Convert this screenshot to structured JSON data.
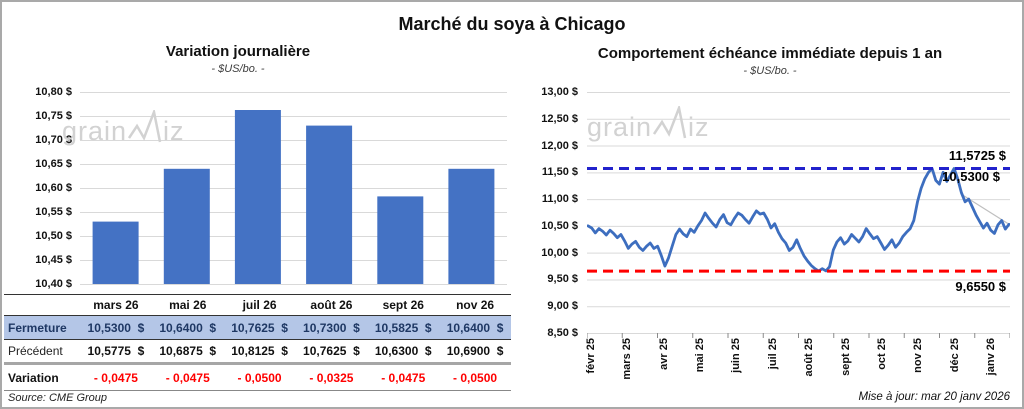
{
  "page": {
    "title": "Marché du soya à Chicago",
    "source": "Source: CME Group",
    "updated": "Mise à jour: mar 20 janv 2026"
  },
  "watermark": {
    "part1": "grain",
    "part2": "iz"
  },
  "chart_data": [
    {
      "type": "bar",
      "title": "Variation journalière",
      "subtitle": "- $US/bo. -",
      "categories": [
        "mars 26",
        "mai 26",
        "juil 26",
        "août 26",
        "sept 26",
        "nov 26"
      ],
      "values": [
        10.53,
        10.64,
        10.7625,
        10.73,
        10.5825,
        10.64
      ],
      "ylabel": "$US/bo.",
      "ylim": [
        10.4,
        10.8
      ],
      "ytick_step": 0.05,
      "grid": true,
      "bar_color": "#4472c4"
    },
    {
      "type": "line",
      "title": "Comportement échéance immédiate depuis 1 an",
      "subtitle": "- $US/bo. -",
      "x_labels": [
        "févr 25",
        "mars 25",
        "avr 25",
        "mai 25",
        "juin 25",
        "juil 25",
        "août 25",
        "sept 25",
        "oct 25",
        "nov 25",
        "déc 25",
        "janv 26"
      ],
      "values": [
        10.5,
        10.46,
        10.37,
        10.45,
        10.4,
        10.33,
        10.42,
        10.36,
        10.28,
        10.34,
        10.22,
        10.08,
        10.16,
        10.21,
        10.1,
        10.04,
        10.12,
        10.18,
        10.08,
        10.12,
        9.95,
        9.75,
        9.9,
        10.12,
        10.34,
        10.44,
        10.35,
        10.3,
        10.44,
        10.38,
        10.5,
        10.6,
        10.74,
        10.64,
        10.55,
        10.48,
        10.62,
        10.71,
        10.56,
        10.52,
        10.64,
        10.74,
        10.7,
        10.62,
        10.55,
        10.67,
        10.78,
        10.72,
        10.74,
        10.62,
        10.46,
        10.54,
        10.38,
        10.26,
        10.18,
        10.04,
        10.1,
        10.24,
        10.08,
        9.94,
        9.84,
        9.76,
        9.7,
        9.655,
        9.7,
        9.66,
        9.74,
        10.05,
        10.2,
        10.28,
        10.16,
        10.22,
        10.34,
        10.27,
        10.2,
        10.3,
        10.45,
        10.35,
        10.26,
        10.3,
        10.18,
        10.06,
        10.14,
        10.24,
        10.1,
        10.18,
        10.3,
        10.38,
        10.45,
        10.6,
        10.95,
        11.2,
        11.38,
        11.5,
        11.5725,
        11.35,
        11.28,
        11.5,
        11.33,
        11.45,
        11.5725,
        11.38,
        11.12,
        10.95,
        11.0,
        10.85,
        10.7,
        10.58,
        10.46,
        10.55,
        10.42,
        10.36,
        10.52,
        10.6,
        10.44,
        10.53
      ],
      "ylabel": "$US/bo.",
      "ylim": [
        8.5,
        13.0
      ],
      "ytick_step": 0.5,
      "grid": true,
      "line_color": "#3d6ebf",
      "high_line": {
        "value": 11.5725,
        "label": "11,5725 $",
        "color": "#2222cc"
      },
      "low_line": {
        "value": 9.655,
        "label": "9,6550 $",
        "color": "#ff0000"
      },
      "last_label": {
        "value": 10.53,
        "label": "10,5300 $"
      }
    }
  ],
  "table": {
    "columns": [
      "mars 26",
      "mai 26",
      "juil 26",
      "août 26",
      "sept 26",
      "nov 26"
    ],
    "rows": [
      {
        "key": "close",
        "label": "Fermeture",
        "values": [
          "10,5300  $",
          "10,6400  $",
          "10,7625  $",
          "10,7300  $",
          "10,5825  $",
          "10,6400  $"
        ]
      },
      {
        "key": "previous",
        "label": "Précédent",
        "values": [
          "10,5775  $",
          "10,6875  $",
          "10,8125  $",
          "10,7625  $",
          "10,6300  $",
          "10,6900  $"
        ]
      },
      {
        "key": "variation",
        "label": "Variation",
        "values": [
          "- 0,0475",
          "- 0,0475",
          "- 0,0500",
          "- 0,0325",
          "- 0,0475",
          "- 0,0500"
        ]
      }
    ]
  }
}
